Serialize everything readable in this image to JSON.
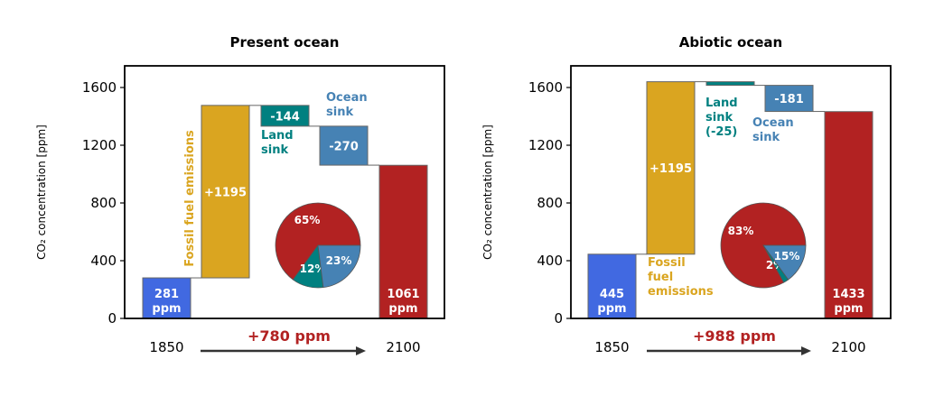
{
  "colors": {
    "start": "#4169E1",
    "fossil": "#DAA520",
    "land": "#008080",
    "ocean": "#4682B4",
    "end": "#B22222",
    "arrow": "#333333"
  },
  "chart_data": [
    {
      "type": "bar",
      "title": "Present ocean",
      "ylabel": "CO₂ concentration [ppm]",
      "ylim": [
        0,
        1750
      ],
      "yticks": [
        0,
        400,
        800,
        1200,
        1600
      ],
      "x_start_label": "1850",
      "x_end_label": "2100",
      "delta_label": "+780 ppm",
      "steps": [
        {
          "name": "start",
          "label": "281\nppm",
          "bottom": 0,
          "top": 281,
          "color_key": "start"
        },
        {
          "name": "fossil",
          "label": "+1195",
          "bottom": 281,
          "top": 1476,
          "color_key": "fossil"
        },
        {
          "name": "land",
          "label": "-144",
          "bottom": 1332,
          "top": 1476,
          "color_key": "land"
        },
        {
          "name": "ocean",
          "label": "-270",
          "bottom": 1062,
          "top": 1332,
          "color_key": "ocean"
        },
        {
          "name": "end",
          "label": "1061\nppm",
          "bottom": 0,
          "top": 1061,
          "color_key": "end"
        }
      ],
      "annotations": {
        "fossil": "Fossil fuel emissions",
        "land": "Land\nsink",
        "ocean": "Ocean\nsink"
      },
      "pie": [
        {
          "label": "65%",
          "value": 65,
          "color_key": "end"
        },
        {
          "label": "12%",
          "value": 12,
          "color_key": "land"
        },
        {
          "label": "23%",
          "value": 23,
          "color_key": "ocean"
        }
      ]
    },
    {
      "type": "bar",
      "title": "Abiotic ocean",
      "ylabel": "CO₂ concentration [ppm]",
      "ylim": [
        0,
        1750
      ],
      "yticks": [
        0,
        400,
        800,
        1200,
        1600
      ],
      "x_start_label": "1850",
      "x_end_label": "2100",
      "delta_label": "+988 ppm",
      "steps": [
        {
          "name": "start",
          "label": "445\nppm",
          "bottom": 0,
          "top": 445,
          "color_key": "start"
        },
        {
          "name": "fossil",
          "label": "+1195",
          "bottom": 445,
          "top": 1640,
          "color_key": "fossil"
        },
        {
          "name": "land",
          "label": "",
          "bottom": 1615,
          "top": 1640,
          "color_key": "land"
        },
        {
          "name": "ocean",
          "label": "-181",
          "bottom": 1434,
          "top": 1615,
          "color_key": "ocean"
        },
        {
          "name": "end",
          "label": "1433\nppm",
          "bottom": 0,
          "top": 1433,
          "color_key": "end"
        }
      ],
      "annotations": {
        "fossil": "Fossil\nfuel\nemissions",
        "land": "Land\nsink\n(-25)",
        "ocean": "Ocean\nsink"
      },
      "pie": [
        {
          "label": "83%",
          "value": 83,
          "color_key": "end"
        },
        {
          "label": "2%",
          "value": 2,
          "color_key": "land"
        },
        {
          "label": "15%",
          "value": 15,
          "color_key": "ocean"
        }
      ]
    }
  ]
}
